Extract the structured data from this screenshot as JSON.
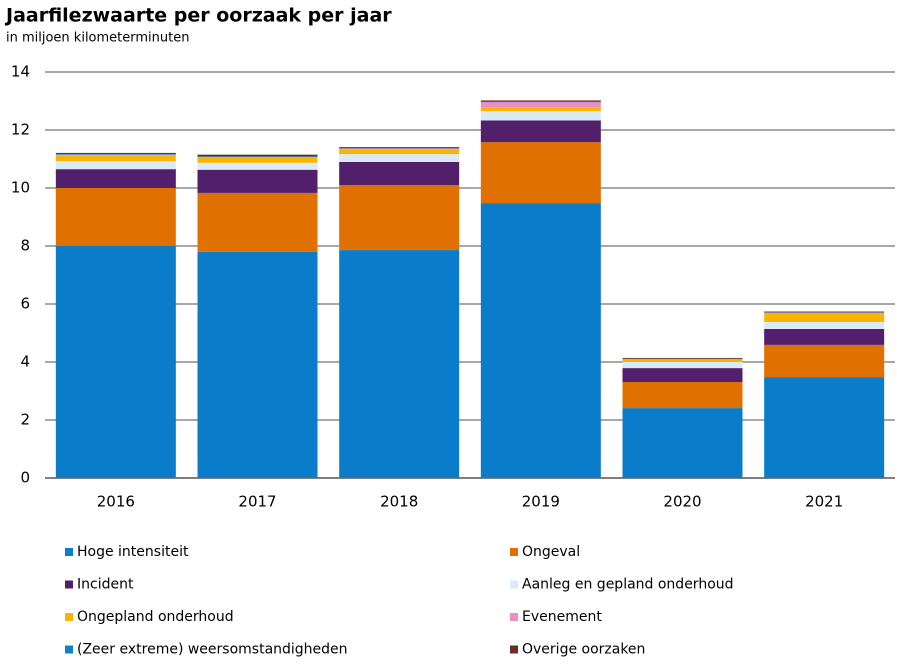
{
  "chart_data": {
    "type": "stacked_bar",
    "title": "Jaarfilezwaarte per oorzaak per jaar",
    "subtitle": "in miljoen kilometerminuten",
    "categories": [
      "2016",
      "2017",
      "2018",
      "2019",
      "2020",
      "2021"
    ],
    "series": [
      {
        "name": "Hoge intensiteit",
        "color": "#0a7cc9",
        "values": [
          8.0,
          7.8,
          7.86,
          9.48,
          2.41,
          3.48
        ]
      },
      {
        "name": "Ongeval",
        "color": "#e07000",
        "values": [
          2.0,
          2.03,
          2.24,
          2.1,
          0.9,
          1.11
        ]
      },
      {
        "name": "Incident",
        "color": "#52206b",
        "values": [
          0.65,
          0.8,
          0.8,
          0.75,
          0.48,
          0.55
        ]
      },
      {
        "name": "Aanleg en gepland onderhoud",
        "color": "#dbeaf7",
        "values": [
          0.28,
          0.24,
          0.27,
          0.32,
          0.21,
          0.24
        ]
      },
      {
        "name": "Ongepland onderhoud",
        "color": "#f9b400",
        "values": [
          0.2,
          0.17,
          0.17,
          0.13,
          0.1,
          0.31
        ]
      },
      {
        "name": "Evenement",
        "color": "#f08cc4",
        "values": [
          0.02,
          0.03,
          0.02,
          0.18,
          0.0,
          0.01
        ]
      },
      {
        "name": "(Zeer extreme) weersomstandigheden",
        "color": "#0d83c6",
        "values": [
          0.02,
          0.02,
          0.01,
          0.02,
          0.01,
          0.01
        ]
      },
      {
        "name": "Overige oorzaken",
        "color": "#6b2f20",
        "values": [
          0.04,
          0.06,
          0.04,
          0.04,
          0.03,
          0.03
        ]
      }
    ],
    "ylim": [
      0,
      14
    ],
    "yticks": [
      0,
      2,
      4,
      6,
      8,
      10,
      12,
      14
    ],
    "grid": true
  }
}
